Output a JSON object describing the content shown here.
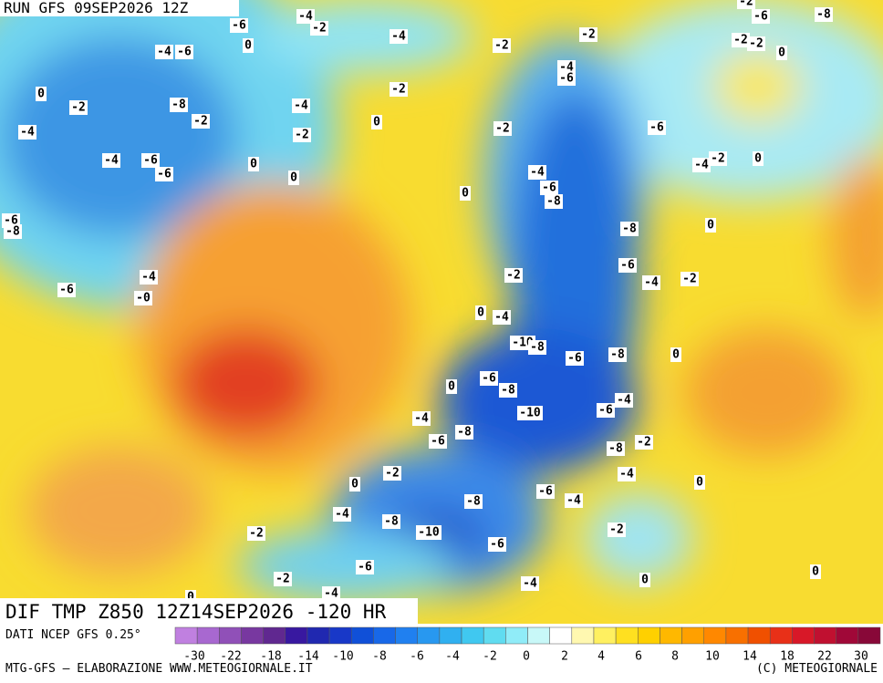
{
  "header": {
    "run": "RUN GFS 09SEP2026 12Z"
  },
  "map": {
    "contour_labels": [
      "-6",
      "-4",
      "-2",
      "-4",
      "0",
      "-4",
      "-6",
      "0",
      "-2",
      "-8",
      "-2",
      "-4",
      "-2",
      "0",
      "-4",
      "-2",
      "-4",
      "-6",
      "-6",
      "0",
      "0",
      "-6",
      "-8",
      "-4",
      "-6",
      "-0",
      "-2",
      "-2",
      "-4",
      "-6",
      "-2",
      "-6",
      "-4",
      "-6",
      "-8",
      "0",
      "-8",
      "-6",
      "-4",
      "-2",
      "-2",
      "0",
      "-4",
      "-10",
      "-8",
      "-6",
      "-8",
      "0",
      "-6",
      "-8",
      "0",
      "-10",
      "-6",
      "-4",
      "-8",
      "-2",
      "-4",
      "-4",
      "-6",
      "-8",
      "0",
      "-2",
      "-6",
      "-4",
      "-8",
      "-4",
      "-8",
      "-10",
      "-2",
      "-6",
      "-2",
      "-6",
      "-2",
      "-4",
      "-4",
      "0",
      "0",
      "0",
      "0",
      "-6",
      "-8",
      "-2",
      "-2",
      "0",
      "-4",
      "-2",
      "0",
      "0",
      "-2"
    ]
  },
  "footer": {
    "product": "DIF TMP Z850 12Z14SEP2026 -120 HR",
    "source": "DATI NCEP GFS 0.25°",
    "credit": "MTG-GFS — ELABORAZIONE WWW.METEOGIORNALE.IT",
    "copyright": "(C) METEOGIORNALE",
    "scale_labels": [
      "-30",
      "-22",
      "-18",
      "-14",
      "-10",
      "-8",
      "-6",
      "-4",
      "-2",
      "0",
      "2",
      "4",
      "6",
      "8",
      "10",
      "14",
      "18",
      "22",
      "30"
    ]
  }
}
